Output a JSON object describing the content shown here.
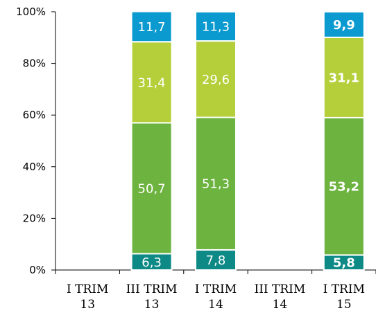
{
  "chart_data": {
    "type": "bar",
    "stacked": true,
    "percent": true,
    "categories": [
      [
        "I TRIM",
        "13"
      ],
      [
        "III TRIM",
        "13"
      ],
      [
        "I TRIM",
        "14"
      ],
      [
        "III TRIM",
        "14"
      ],
      [
        "I TRIM",
        "15"
      ]
    ],
    "series": [
      {
        "color": "#0d8a86",
        "values": [
          null,
          6.3,
          7.8,
          null,
          5.8
        ],
        "labels": [
          null,
          "6,3",
          "7,8",
          null,
          "5,8"
        ]
      },
      {
        "color": "#6db33f",
        "values": [
          null,
          50.7,
          51.3,
          null,
          53.2
        ],
        "labels": [
          null,
          "50,7",
          "51,3",
          null,
          "53,2"
        ]
      },
      {
        "color": "#b5cf3a",
        "values": [
          null,
          31.4,
          29.6,
          null,
          31.1
        ],
        "labels": [
          null,
          "31,4",
          "29,6",
          null,
          "31,1"
        ]
      },
      {
        "color": "#0a9ad0",
        "values": [
          null,
          11.7,
          11.3,
          null,
          9.9
        ],
        "labels": [
          null,
          "11,7",
          "11,3",
          null,
          "9,9"
        ]
      }
    ],
    "bold_categories": [
      4
    ],
    "ylim": [
      0,
      100
    ],
    "yticks": [
      "0%",
      "20%",
      "40%",
      "60%",
      "80%",
      "100%"
    ],
    "xlabel": "",
    "ylabel": "",
    "title": "",
    "grid": false,
    "legend": "none"
  }
}
